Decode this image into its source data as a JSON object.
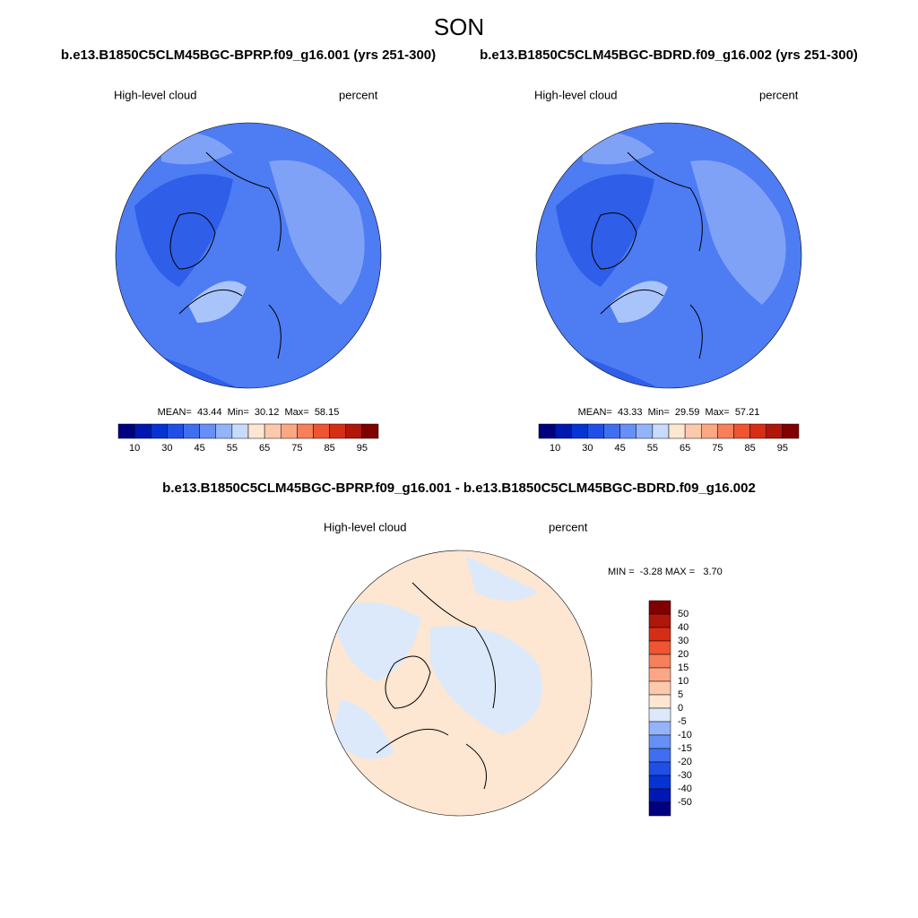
{
  "title": "SON",
  "panels": [
    {
      "subtitle": "b.e13.B1850C5CLM45BGC-BPRP.f09_g16.001 (yrs 251-300)",
      "left_label": "High-level cloud",
      "right_label": "percent",
      "stats": "MEAN=  43.44  Min=  30.12  Max=  58.15",
      "colorbar": {
        "labels": [
          10,
          30,
          45,
          55,
          65,
          75,
          85,
          95
        ],
        "colors": [
          "#00007f",
          "#0018b0",
          "#0533d4",
          "#1f4fe6",
          "#3f6ef0",
          "#6690f5",
          "#94b4f9",
          "#c7dcfc",
          "#fde6d2",
          "#fcc9ad",
          "#fba784",
          "#f77f5a",
          "#ee5530",
          "#d62e14",
          "#b0160a",
          "#800000"
        ]
      }
    },
    {
      "subtitle": "b.e13.B1850C5CLM45BGC-BDRD.f09_g16.002 (yrs 251-300)",
      "left_label": "High-level cloud",
      "right_label": "percent",
      "stats": "MEAN=  43.33  Min=  29.59  Max=  57.21",
      "colorbar": {
        "labels": [
          10,
          30,
          45,
          55,
          65,
          75,
          85,
          95
        ],
        "colors": [
          "#00007f",
          "#0018b0",
          "#0533d4",
          "#1f4fe6",
          "#3f6ef0",
          "#6690f5",
          "#94b4f9",
          "#c7dcfc",
          "#fde6d2",
          "#fcc9ad",
          "#fba784",
          "#f77f5a",
          "#ee5530",
          "#d62e14",
          "#b0160a",
          "#800000"
        ]
      }
    },
    {
      "subtitle": "b.e13.B1850C5CLM45BGC-BPRP.f09_g16.001 - b.e13.B1850C5CLM45BGC-BDRD.f09_g16.002",
      "left_label": "High-level cloud",
      "right_label": "percent",
      "stats": "MIN =  -3.28 MAX =   3.70",
      "colorbar": {
        "labels": [
          50,
          40,
          30,
          20,
          15,
          10,
          5,
          0,
          -5,
          -10,
          -15,
          -20,
          -30,
          -40,
          -50
        ],
        "colors": [
          "#800000",
          "#b0160a",
          "#d62e14",
          "#ee5530",
          "#f77f5a",
          "#fba784",
          "#fcc9ad",
          "#fde6d2",
          "#dce9fb",
          "#94b4f9",
          "#6690f5",
          "#3f6ef0",
          "#1f4fe6",
          "#0533d4",
          "#0018b0",
          "#00007f"
        ]
      }
    }
  ]
}
